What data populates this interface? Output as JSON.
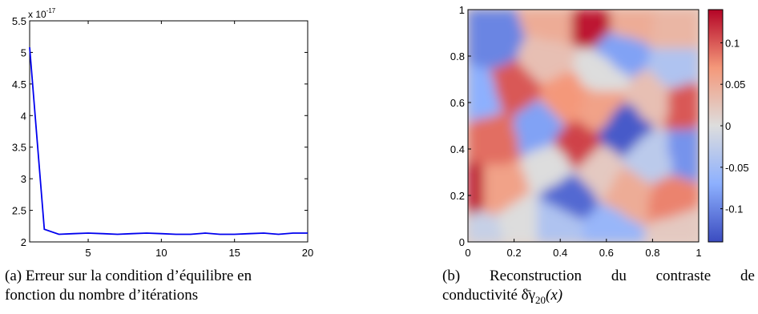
{
  "chart_data": [
    {
      "type": "line",
      "x": [
        1,
        2,
        3,
        4,
        5,
        6,
        7,
        8,
        9,
        10,
        11,
        12,
        13,
        14,
        15,
        16,
        17,
        18,
        19,
        20
      ],
      "series": [
        {
          "values": [
            5.08,
            2.2,
            2.12,
            2.13,
            2.14,
            2.13,
            2.12,
            2.13,
            2.14,
            2.13,
            2.12,
            2.12,
            2.14,
            2.12,
            2.12,
            2.13,
            2.14,
            2.12,
            2.14,
            2.14
          ],
          "color": "#0000ee"
        }
      ],
      "exponent_label": "x 10",
      "exponent_power": "-17",
      "xlim": [
        1,
        20
      ],
      "ylim": [
        2,
        5.5
      ],
      "xticks": [
        "5",
        "10",
        "15",
        "20"
      ],
      "yticks": [
        "2",
        "2.5",
        "3",
        "3.5",
        "4",
        "4.5",
        "5",
        "5.5"
      ],
      "grid": false
    },
    {
      "type": "heatmap",
      "xlim": [
        0,
        1
      ],
      "ylim": [
        0,
        1
      ],
      "xticks": [
        "0",
        "0.2",
        "0.4",
        "0.6",
        "0.8",
        "1"
      ],
      "yticks": [
        "0",
        "0.2",
        "0.4",
        "0.6",
        "0.8",
        "1"
      ],
      "colorbar_range": [
        -0.14,
        0.14
      ],
      "colorbar_ticks": [
        "0.1",
        "0.05",
        "0",
        "-0.05",
        "-0.1"
      ],
      "colormap": [
        "#3b4cc0",
        "#dddddd",
        "#b40426"
      ],
      "regions": [
        {
          "x": 0.12,
          "y": 0.87,
          "v": -0.1
        },
        {
          "x": 0.05,
          "y": 0.62,
          "v": -0.07
        },
        {
          "x": 0.2,
          "y": 0.66,
          "v": 0.1
        },
        {
          "x": 0.33,
          "y": 0.79,
          "v": 0.03
        },
        {
          "x": 0.36,
          "y": 0.95,
          "v": 0.05
        },
        {
          "x": 0.42,
          "y": 0.62,
          "v": 0.07
        },
        {
          "x": 0.54,
          "y": 0.96,
          "v": 0.13
        },
        {
          "x": 0.7,
          "y": 0.95,
          "v": 0.05
        },
        {
          "x": 0.66,
          "y": 0.82,
          "v": -0.08
        },
        {
          "x": 0.9,
          "y": 0.91,
          "v": 0.04
        },
        {
          "x": 0.9,
          "y": 0.74,
          "v": -0.04
        },
        {
          "x": 0.58,
          "y": 0.72,
          "v": 0.0
        },
        {
          "x": 0.57,
          "y": 0.59,
          "v": 0.06
        },
        {
          "x": 0.8,
          "y": 0.62,
          "v": 0.03
        },
        {
          "x": 0.94,
          "y": 0.6,
          "v": 0.1
        },
        {
          "x": 0.68,
          "y": 0.5,
          "v": -0.13
        },
        {
          "x": 0.31,
          "y": 0.5,
          "v": -0.08
        },
        {
          "x": 0.1,
          "y": 0.45,
          "v": 0.09
        },
        {
          "x": 0.46,
          "y": 0.4,
          "v": 0.11
        },
        {
          "x": 0.38,
          "y": 0.33,
          "v": 0.0
        },
        {
          "x": 0.55,
          "y": 0.3,
          "v": 0.02
        },
        {
          "x": 0.8,
          "y": 0.36,
          "v": -0.03
        },
        {
          "x": 0.95,
          "y": 0.38,
          "v": -0.09
        },
        {
          "x": 0.12,
          "y": 0.22,
          "v": 0.06
        },
        {
          "x": 0.02,
          "y": 0.22,
          "v": 0.13
        },
        {
          "x": 0.45,
          "y": 0.21,
          "v": -0.12
        },
        {
          "x": 0.7,
          "y": 0.2,
          "v": 0.05
        },
        {
          "x": 0.88,
          "y": 0.18,
          "v": 0.08
        },
        {
          "x": 0.22,
          "y": 0.07,
          "v": 0.0
        },
        {
          "x": 0.38,
          "y": 0.06,
          "v": -0.04
        },
        {
          "x": 0.62,
          "y": 0.05,
          "v": -0.06
        },
        {
          "x": 0.92,
          "y": 0.05,
          "v": 0.02
        },
        {
          "x": 0.06,
          "y": 0.03,
          "v": -0.02
        }
      ]
    }
  ],
  "captions": {
    "a_line1": "(a) Erreur sur la condition d’équilibre en",
    "a_line2": "fonction du nombre d’itérations",
    "b_w1": "(b)",
    "b_w2": "Reconstruction",
    "b_w3": "du",
    "b_w4": "contraste",
    "b_w5": "de",
    "b_line2": "conductivité",
    "b_math_delta": "δ̄",
    "b_math_gamma": "γ",
    "b_math_sub": "20",
    "b_math_arg": "(x)"
  }
}
